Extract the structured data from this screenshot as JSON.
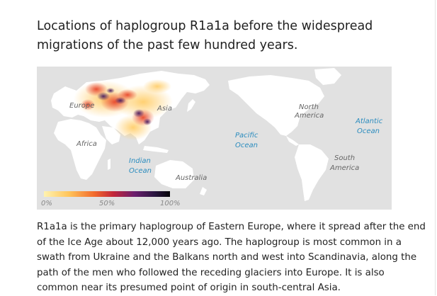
{
  "article": {
    "heading": "Locations of haplogroup R1a1a before the widespread migrations of the past few hundred years.",
    "body": "R1a1a is the primary haplogroup of Eastern Europe, where it spread after the end of the Ice Age about 12,000 years ago. The haplogroup is most common in a swath from Ukraine and the Balkans north and west into Scandinavia, along the path of the men who followed the receding glaciers into Europe. It is also common near its presumed point of origin in south-central Asia."
  },
  "map": {
    "land_labels": {
      "europe": "Europe",
      "asia": "Asia",
      "africa": "Africa",
      "australia": "Australia",
      "north_america": [
        "North",
        "America"
      ],
      "south_america": [
        "South",
        "America"
      ]
    },
    "ocean_labels": {
      "indian": [
        "Indian",
        "Ocean"
      ],
      "pacific": [
        "Pacific",
        "Ocean"
      ],
      "atlantic": [
        "Atlantic",
        "Ocean"
      ]
    },
    "legend": {
      "ticks": [
        "0%",
        "50%",
        "100%"
      ],
      "stops": [
        0,
        0.5,
        1
      ]
    },
    "colors": {
      "background": "#e1e1e1",
      "land": "#ffffff",
      "ocean_label": "#2b8cbe",
      "land_label": "#666666",
      "heat_low": "#ffd67a",
      "heat_mid": "#e84a2c",
      "heat_high": "#3a1a5e",
      "heat_max": "#0b0b14"
    }
  }
}
